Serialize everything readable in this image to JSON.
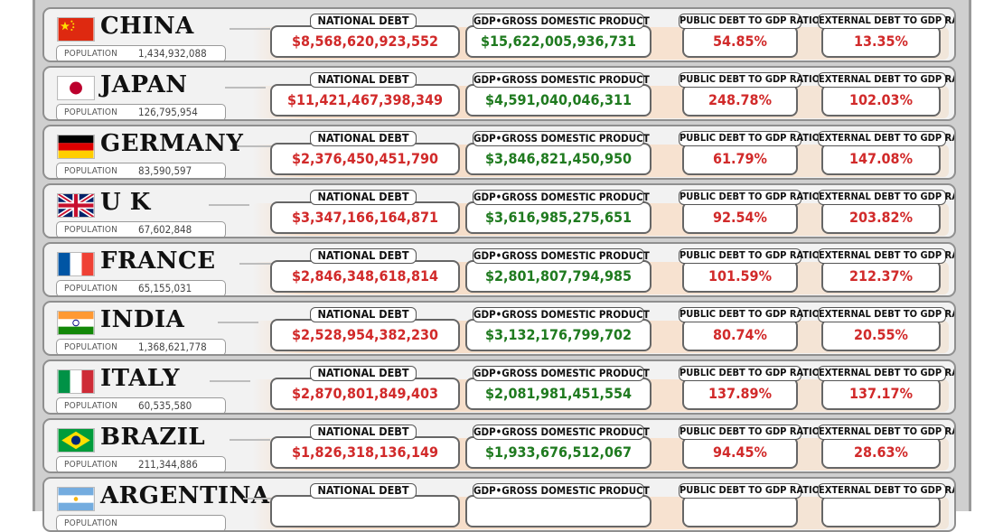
{
  "labels": {
    "population": "POPULATION",
    "national_debt": "NATIONAL DEBT",
    "gdp": "GDP•GROSS DOMESTIC PRODUCT",
    "public_ratio": "PUBLIC DEBT TO GDP RATIO",
    "external_ratio": "EXTERNAL DEBT TO GDP RATIO"
  },
  "colors": {
    "debt": "#d12a2a",
    "gdp": "#1f7a1f",
    "row_bg": "#f2f2f2"
  },
  "countries": [
    {
      "name": "CHINA",
      "flag": "china-flag-icon",
      "population": "1,434,932,088",
      "national_debt": "$8,568,620,923,552",
      "gdp": "$15,622,005,936,731",
      "public_ratio": "54.85%",
      "external_ratio": "13.35%"
    },
    {
      "name": "JAPAN",
      "flag": "japan-flag-icon",
      "population": "126,795,954",
      "national_debt": "$11,421,467,398,349",
      "gdp": "$4,591,040,046,311",
      "public_ratio": "248.78%",
      "external_ratio": "102.03%"
    },
    {
      "name": "GERMANY",
      "flag": "germany-flag-icon",
      "population": "83,590,597",
      "national_debt": "$2,376,450,451,790",
      "gdp": "$3,846,821,450,950",
      "public_ratio": "61.79%",
      "external_ratio": "147.08%"
    },
    {
      "name": "U K",
      "flag": "uk-flag-icon",
      "population": "67,602,848",
      "national_debt": "$3,347,166,164,871",
      "gdp": "$3,616,985,275,651",
      "public_ratio": "92.54%",
      "external_ratio": "203.82%"
    },
    {
      "name": "FRANCE",
      "flag": "france-flag-icon",
      "population": "65,155,031",
      "national_debt": "$2,846,348,618,814",
      "gdp": "$2,801,807,794,985",
      "public_ratio": "101.59%",
      "external_ratio": "212.37%"
    },
    {
      "name": "INDIA",
      "flag": "india-flag-icon",
      "population": "1,368,621,778",
      "national_debt": "$2,528,954,382,230",
      "gdp": "$3,132,176,799,702",
      "public_ratio": "80.74%",
      "external_ratio": "20.55%"
    },
    {
      "name": "ITALY",
      "flag": "italy-flag-icon",
      "population": "60,535,580",
      "national_debt": "$2,870,801,849,403",
      "gdp": "$2,081,981,451,554",
      "public_ratio": "137.89%",
      "external_ratio": "137.17%"
    },
    {
      "name": "BRAZIL",
      "flag": "brazil-flag-icon",
      "population": "211,344,886",
      "national_debt": "$1,826,318,136,149",
      "gdp": "$1,933,676,512,067",
      "public_ratio": "94.45%",
      "external_ratio": "28.63%"
    },
    {
      "name": "ARGENTINA",
      "flag": "argentina-flag-icon",
      "population": "",
      "national_debt": "",
      "gdp": "",
      "public_ratio": "",
      "external_ratio": ""
    }
  ]
}
